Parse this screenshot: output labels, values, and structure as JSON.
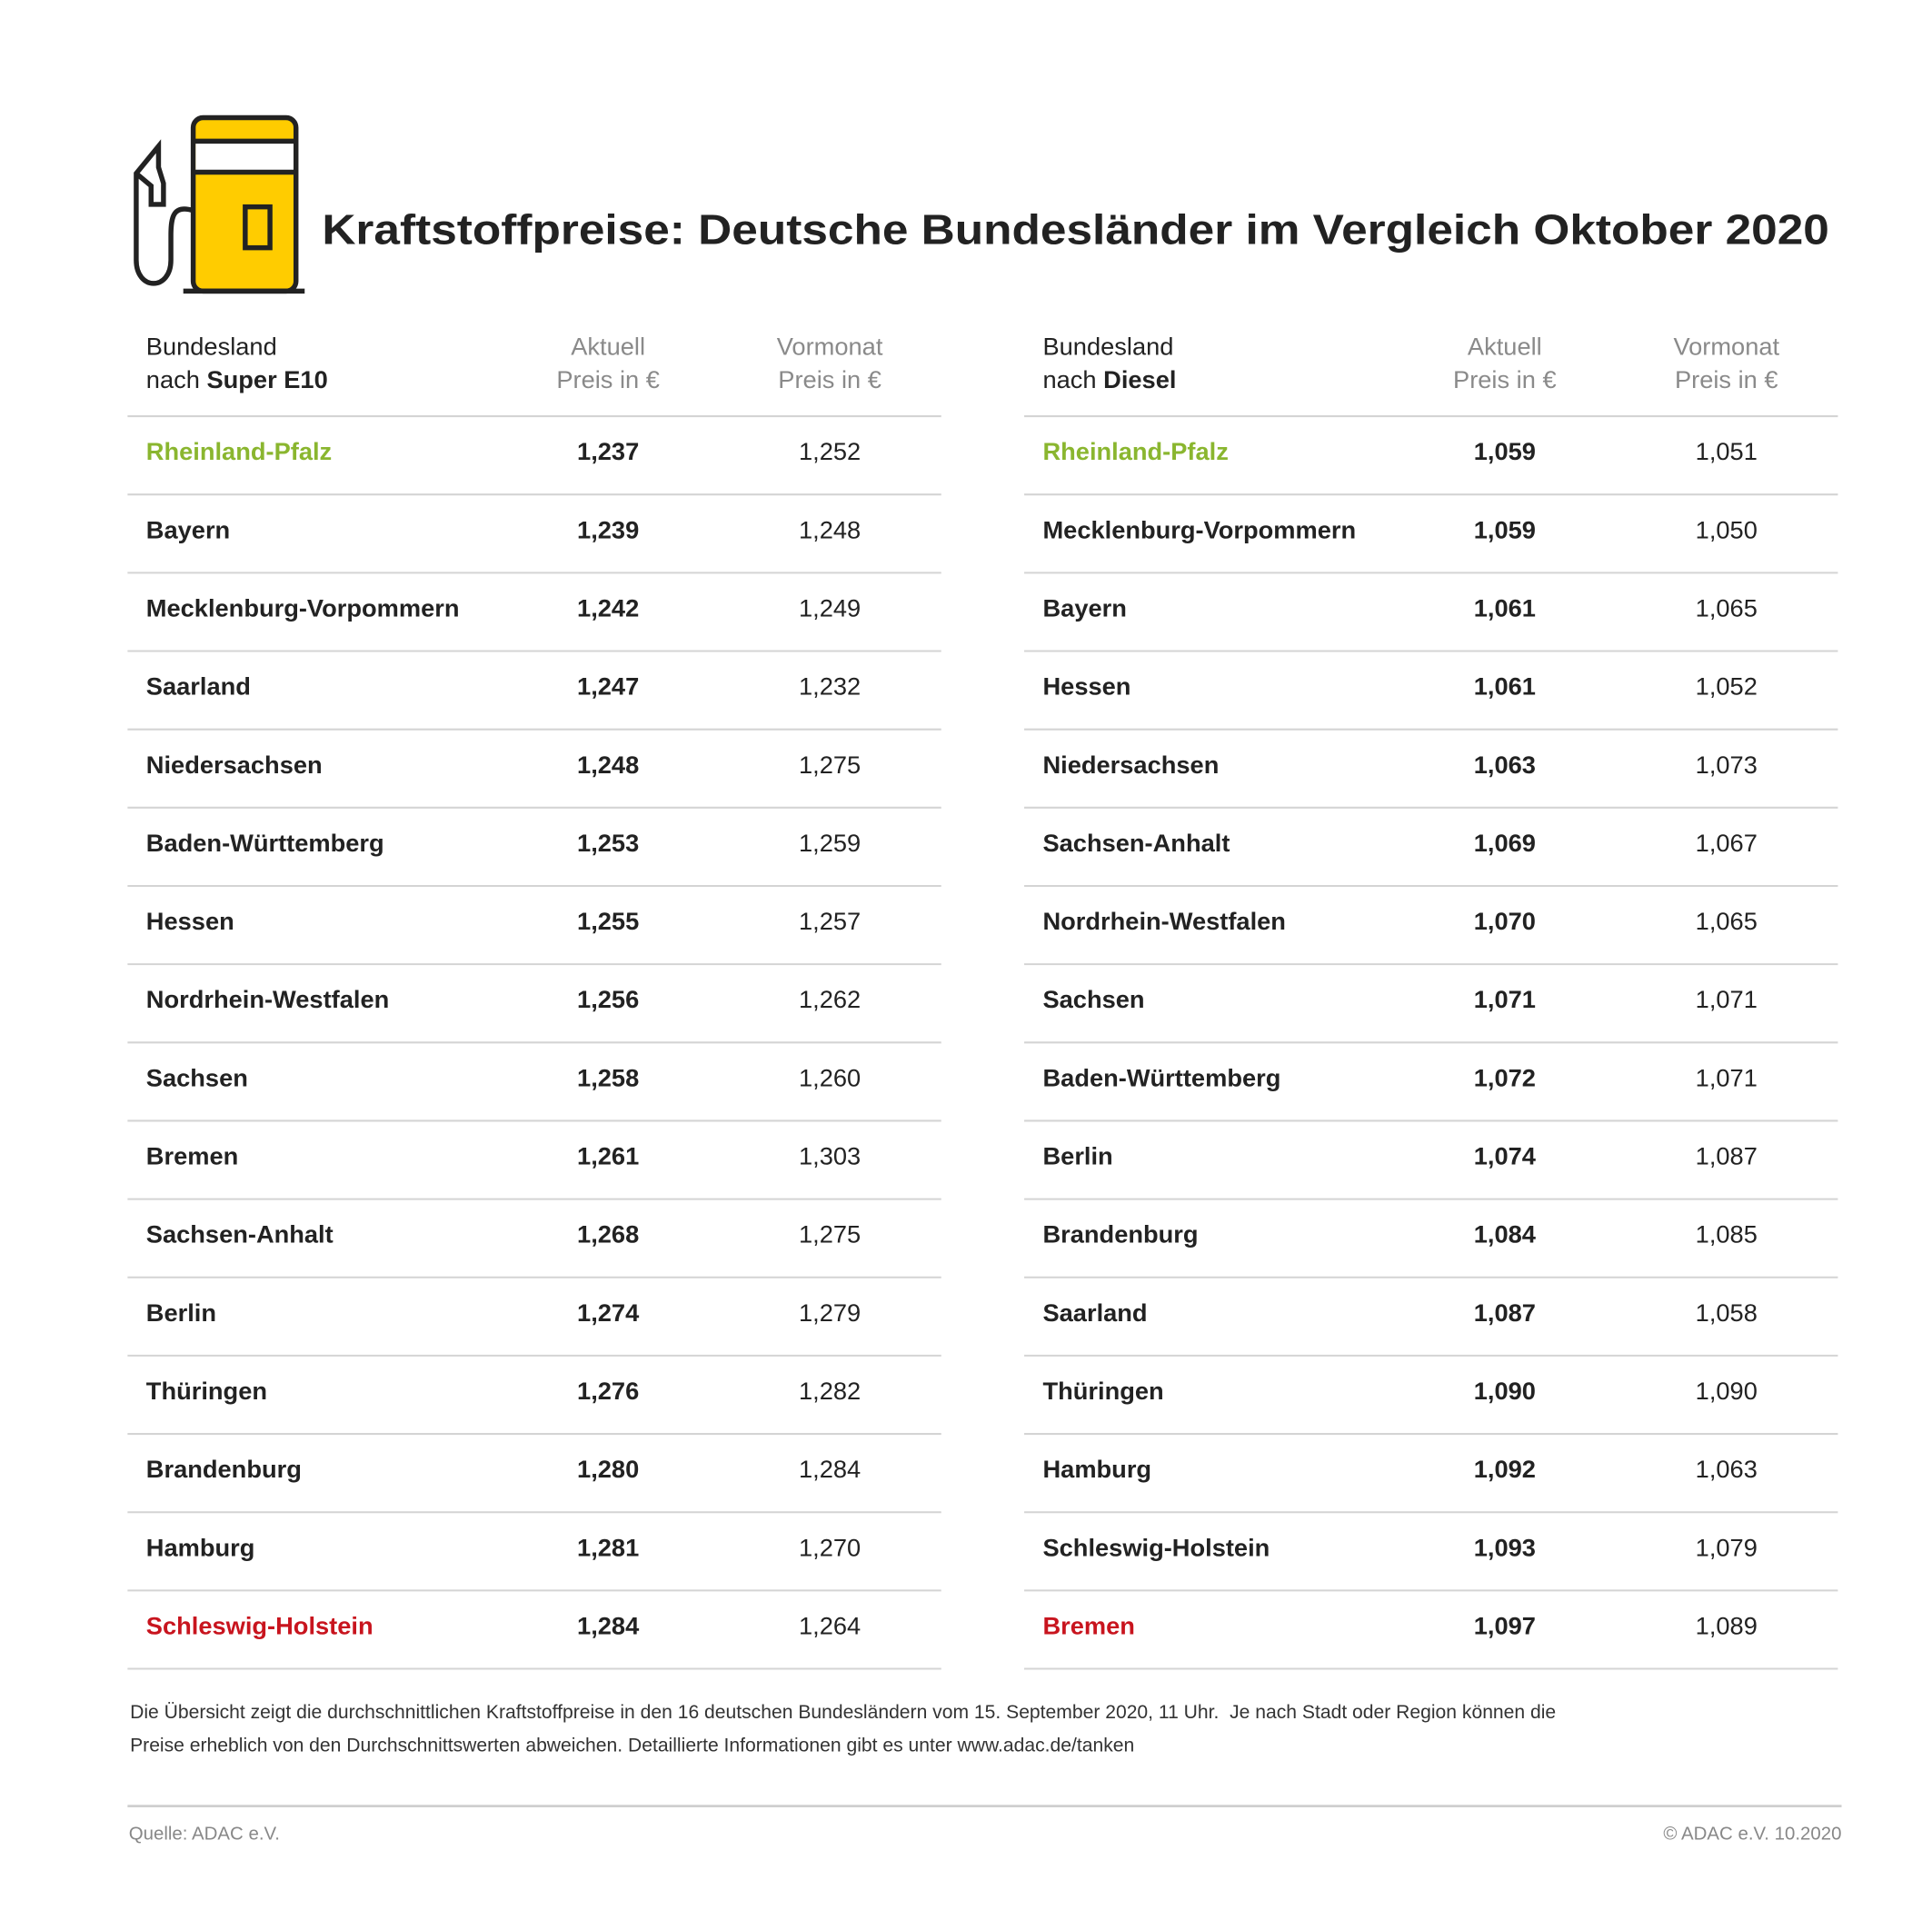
{
  "header": {
    "title": "Kraftstoffpreise: Deutsche Bundesländer im Vergleich Oktober 2020"
  },
  "best_color": "#8ab62f",
  "worst_color": "#c8141e",
  "tables": [
    {
      "columns": [
        {
          "line1": "Bundesland",
          "line2": "nach",
          "line2_bold": "Super E10"
        },
        {
          "line1": "Aktuell",
          "line2": "Preis in €"
        },
        {
          "line1": "Vormonat",
          "line2": "Preis in €"
        }
      ],
      "rows": [
        [
          "Rheinland-Pfalz",
          "1,237",
          "1,252"
        ],
        [
          "Bayern",
          "1,239",
          "1,248"
        ],
        [
          "Mecklenburg-Vorpommern",
          "1,242",
          "1,249"
        ],
        [
          "Saarland",
          "1,247",
          "1,232"
        ],
        [
          "Niedersachsen",
          "1,248",
          "1,275"
        ],
        [
          "Baden-Württemberg",
          "1,253",
          "1,259"
        ],
        [
          "Hessen",
          "1,255",
          "1,257"
        ],
        [
          "Nordrhein-Westfalen",
          "1,256",
          "1,262"
        ],
        [
          "Sachsen",
          "1,258",
          "1,260"
        ],
        [
          "Bremen",
          "1,261",
          "1,303"
        ],
        [
          "Sachsen-Anhalt",
          "1,268",
          "1,275"
        ],
        [
          "Berlin",
          "1,274",
          "1,279"
        ],
        [
          "Thüringen",
          "1,276",
          "1,282"
        ],
        [
          "Brandenburg",
          "1,280",
          "1,284"
        ],
        [
          "Hamburg",
          "1,281",
          "1,270"
        ],
        [
          "Schleswig-Holstein",
          "1,284",
          "1,264"
        ]
      ]
    },
    {
      "columns": [
        {
          "line1": "Bundesland",
          "line2": "nach",
          "line2_bold": "Diesel"
        },
        {
          "line1": "Aktuell",
          "line2": "Preis in €"
        },
        {
          "line1": "Vormonat",
          "line2": "Preis in €"
        }
      ],
      "rows": [
        [
          "Rheinland-Pfalz",
          "1,059",
          "1,051"
        ],
        [
          "Mecklenburg-Vorpommern",
          "1,059",
          "1,050"
        ],
        [
          "Bayern",
          "1,061",
          "1,065"
        ],
        [
          "Hessen",
          "1,061",
          "1,052"
        ],
        [
          "Niedersachsen",
          "1,063",
          "1,073"
        ],
        [
          "Sachsen-Anhalt",
          "1,069",
          "1,067"
        ],
        [
          "Nordrhein-Westfalen",
          "1,070",
          "1,065"
        ],
        [
          "Sachsen",
          "1,071",
          "1,071"
        ],
        [
          "Baden-Württemberg",
          "1,072",
          "1,071"
        ],
        [
          "Berlin",
          "1,074",
          "1,087"
        ],
        [
          "Brandenburg",
          "1,084",
          "1,085"
        ],
        [
          "Saarland",
          "1,087",
          "1,058"
        ],
        [
          "Thüringen",
          "1,090",
          "1,090"
        ],
        [
          "Hamburg",
          "1,092",
          "1,063"
        ],
        [
          "Schleswig-Holstein",
          "1,093",
          "1,079"
        ],
        [
          "Bremen",
          "1,097",
          "1,089"
        ]
      ]
    }
  ],
  "footnote": [
    "Die Übersicht zeigt die durchschnittlichen Kraftstoffpreise in den 16 deutschen Bundesländern vom 15. September 2020, 11 Uhr.  Je nach Stadt oder Region können die",
    "Preise erheblich von den Durchschnittswerten abweichen. Detaillierte Informationen gibt es unter www.adac.de/tanken"
  ],
  "footer": {
    "source": "Quelle: ADAC e.V.",
    "copyright": "© ADAC e.V. 10.2020"
  }
}
